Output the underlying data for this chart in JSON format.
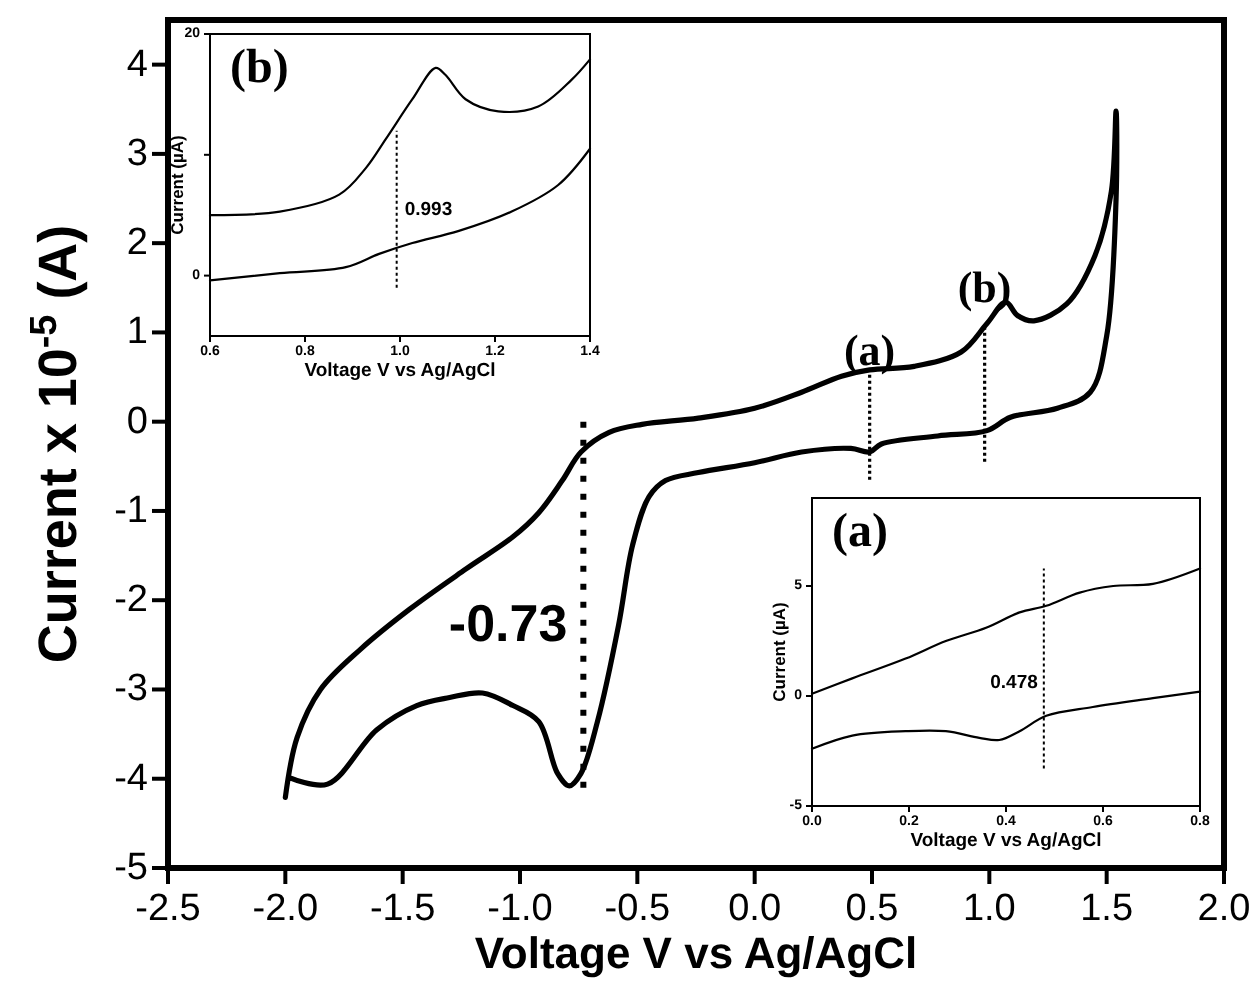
{
  "chart_data": [
    {
      "type": "line",
      "xlabel": "Voltage V vs Ag/AgCl",
      "ylabel": "Current x 10$^{-5}$ (A)",
      "xlim": [
        -2.5,
        2.0
      ],
      "ylim": [
        -5,
        4.5
      ],
      "xticks": [
        {
          "value": -2.5,
          "label": "-2.5"
        },
        {
          "value": -2,
          "label": "-2.0"
        },
        {
          "value": -1.5,
          "label": "-1.5"
        },
        {
          "value": -1,
          "label": "-1.0"
        },
        {
          "value": -0.5,
          "label": "-0.5"
        },
        {
          "value": 0,
          "label": "0.0"
        },
        {
          "value": 0.5,
          "label": "0.5"
        },
        {
          "value": 1,
          "label": "1.0"
        },
        {
          "value": 1.5,
          "label": "1.5"
        },
        {
          "value": 2,
          "label": "2.0"
        }
      ],
      "yticks": [
        -5,
        -4,
        -3,
        -2,
        -1,
        0,
        1,
        2,
        3,
        4
      ],
      "grid": false,
      "marker": "none",
      "line_style": "solid",
      "series": [
        {
          "color": "#000000",
          "x": [
            -2.0,
            -1.95,
            -1.85,
            -1.68,
            -1.47,
            -1.23,
            -1.03,
            -0.92,
            -0.82,
            -0.74,
            -0.62,
            -0.48,
            -0.24,
            0.0,
            0.2,
            0.37,
            0.49,
            0.68,
            0.88,
            0.99,
            1.07,
            1.12,
            1.19,
            1.33,
            1.45,
            1.52,
            1.54,
            1.54,
            1.5,
            1.43,
            1.29,
            1.09,
            0.99,
            0.78,
            0.54,
            0.49,
            0.41,
            0.2,
            0.0,
            -0.24,
            -0.38,
            -0.45,
            -0.52,
            -0.58,
            -0.67,
            -0.74,
            -0.79,
            -0.84,
            -0.92,
            -1.03,
            -1.16,
            -1.3,
            -1.44,
            -1.61,
            -1.82,
            -1.98
          ],
          "values": [
            -4.21,
            -3.54,
            -3.0,
            -2.55,
            -2.1,
            -1.65,
            -1.29,
            -1.02,
            -0.66,
            -0.34,
            -0.12,
            -0.03,
            0.04,
            0.15,
            0.33,
            0.51,
            0.58,
            0.62,
            0.78,
            1.1,
            1.34,
            1.19,
            1.13,
            1.32,
            1.86,
            2.58,
            3.48,
            2.49,
            0.96,
            0.33,
            0.15,
            0.05,
            -0.1,
            -0.16,
            -0.25,
            -0.34,
            -0.3,
            -0.34,
            -0.46,
            -0.57,
            -0.66,
            -0.84,
            -1.38,
            -2.28,
            -3.36,
            -3.94,
            -4.08,
            -3.94,
            -3.36,
            -3.18,
            -3.04,
            -3.09,
            -3.18,
            -3.45,
            -4.06,
            -3.99
          ]
        }
      ],
      "ref_lines": [
        {
          "axis": "x",
          "value": -0.73,
          "label": "-0.73",
          "line_style": "dotted"
        },
        {
          "axis": "x",
          "value": 0.49,
          "label": "(a)",
          "line_style": "dotted"
        },
        {
          "axis": "x",
          "value": 0.98,
          "label": "(b)",
          "line_style": "dotted"
        }
      ]
    },
    {
      "type": "line",
      "title": "(b)",
      "xlabel": "Voltage V vs Ag/AgCl",
      "ylabel": "Current (µA)",
      "xlim": [
        0.6,
        1.4
      ],
      "ylim": [
        -5,
        20
      ],
      "xticks": [
        0.6,
        0.8,
        {
          "value": 1,
          "label": "1.0"
        },
        1.2,
        1.4
      ],
      "yticks": [
        0,
        {
          "value": 10,
          "label": null
        },
        20
      ],
      "marker": "none",
      "line_style": "solid",
      "series": [
        {
          "color": "#000000",
          "x": [
            0.6,
            0.747,
            0.872,
            0.928,
            0.97,
            1.026,
            1.075,
            1.096,
            1.138,
            1.207,
            1.291,
            1.361,
            1.4
          ],
          "values": [
            5.0,
            5.3,
            6.7,
            8.9,
            11.3,
            14.6,
            17.2,
            16.6,
            14.6,
            13.6,
            14.0,
            16.2,
            17.9
          ]
        },
        {
          "color": "#000000",
          "x": [
            0.6,
            0.747,
            0.886,
            0.956,
            1.026,
            1.124,
            1.235,
            1.333,
            1.4
          ],
          "values": [
            -0.4,
            0.2,
            0.7,
            1.8,
            2.7,
            3.7,
            5.3,
            7.5,
            10.5
          ]
        }
      ],
      "ref_lines": [
        {
          "axis": "x",
          "value": 0.993,
          "label": "0.993",
          "line_style": "dotted"
        }
      ]
    },
    {
      "type": "line",
      "title": "(a)",
      "xlabel": "Voltage V vs Ag/AgCl",
      "ylabel": "Current (µA)",
      "xlim": [
        0,
        0.8
      ],
      "ylim": [
        -5,
        9
      ],
      "xticks": [
        {
          "value": 0,
          "label": "0.0"
        },
        0.2,
        0.4,
        0.6,
        0.8
      ],
      "yticks": [
        -5,
        0,
        5
      ],
      "marker": "none",
      "line_style": "solid",
      "series": [
        {
          "color": "#000000",
          "x": [
            0,
            0.083,
            0.193,
            0.276,
            0.359,
            0.428,
            0.483,
            0.552,
            0.621,
            0.703,
            0.8
          ],
          "values": [
            0.1,
            0.8,
            1.7,
            2.5,
            3.1,
            3.8,
            4.1,
            4.7,
            5.0,
            5.1,
            5.8
          ]
        },
        {
          "color": "#000000",
          "x": [
            0,
            0.083,
            0.193,
            0.276,
            0.345,
            0.386,
            0.428,
            0.483,
            0.579,
            0.703,
            0.8
          ],
          "values": [
            -2.4,
            -1.8,
            -1.6,
            -1.6,
            -1.9,
            -2.0,
            -1.6,
            -0.9,
            -0.5,
            -0.1,
            0.2
          ]
        }
      ],
      "ref_lines": [
        {
          "axis": "x",
          "value": 0.478,
          "label": "0.478",
          "line_style": "dotted"
        }
      ]
    }
  ]
}
